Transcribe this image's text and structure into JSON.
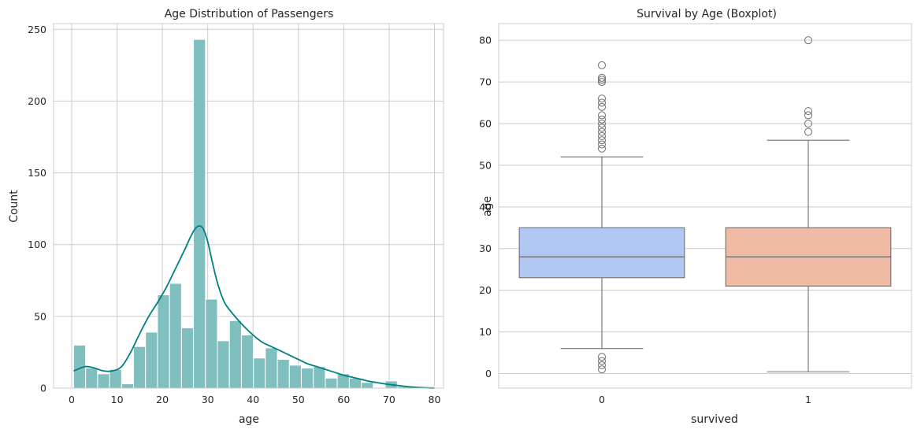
{
  "colors": {
    "hist_fill": "#7fbfbf",
    "kde_line": "#008080",
    "box_0": "#b1c8f5",
    "box_1": "#efbba5",
    "box_line": "#6e6e6e",
    "grid": "#cccccc",
    "frame": "#cccccc"
  },
  "chart_data": [
    {
      "type": "histogram",
      "title": "Age Distribution of Passengers",
      "xlabel": "age",
      "ylabel": "Count",
      "xlim": [
        -4,
        82
      ],
      "ylim": [
        0,
        254
      ],
      "xticks": [
        0,
        10,
        20,
        30,
        40,
        50,
        60,
        70,
        80
      ],
      "yticks": [
        0,
        50,
        100,
        150,
        200,
        250
      ],
      "grid": true,
      "bins": [
        {
          "x0": 0.42,
          "x1": 3.06,
          "count": 30
        },
        {
          "x0": 3.06,
          "x1": 5.71,
          "count": 14
        },
        {
          "x0": 5.71,
          "x1": 8.35,
          "count": 10
        },
        {
          "x0": 8.35,
          "x1": 10.99,
          "count": 13
        },
        {
          "x0": 10.99,
          "x1": 13.64,
          "count": 3
        },
        {
          "x0": 13.64,
          "x1": 16.28,
          "count": 29
        },
        {
          "x0": 16.28,
          "x1": 18.92,
          "count": 39
        },
        {
          "x0": 18.92,
          "x1": 21.57,
          "count": 65
        },
        {
          "x0": 21.57,
          "x1": 24.21,
          "count": 73
        },
        {
          "x0": 24.21,
          "x1": 26.85,
          "count": 42
        },
        {
          "x0": 26.85,
          "x1": 29.5,
          "count": 243
        },
        {
          "x0": 29.5,
          "x1": 32.14,
          "count": 62
        },
        {
          "x0": 32.14,
          "x1": 34.78,
          "count": 33
        },
        {
          "x0": 34.78,
          "x1": 37.43,
          "count": 47
        },
        {
          "x0": 37.43,
          "x1": 40.07,
          "count": 37
        },
        {
          "x0": 40.07,
          "x1": 42.71,
          "count": 21
        },
        {
          "x0": 42.71,
          "x1": 45.36,
          "count": 28
        },
        {
          "x0": 45.36,
          "x1": 48.0,
          "count": 20
        },
        {
          "x0": 48.0,
          "x1": 50.64,
          "count": 16
        },
        {
          "x0": 50.64,
          "x1": 53.29,
          "count": 14
        },
        {
          "x0": 53.29,
          "x1": 55.93,
          "count": 15
        },
        {
          "x0": 55.93,
          "x1": 58.57,
          "count": 7
        },
        {
          "x0": 58.57,
          "x1": 61.22,
          "count": 10
        },
        {
          "x0": 61.22,
          "x1": 63.86,
          "count": 7
        },
        {
          "x0": 63.86,
          "x1": 66.5,
          "count": 4
        },
        {
          "x0": 66.5,
          "x1": 69.15,
          "count": 0
        },
        {
          "x0": 69.15,
          "x1": 71.79,
          "count": 5
        },
        {
          "x0": 71.79,
          "x1": 74.43,
          "count": 1
        },
        {
          "x0": 74.43,
          "x1": 77.08,
          "count": 0
        },
        {
          "x0": 77.08,
          "x1": 80.0,
          "count": 1
        }
      ],
      "kde": {
        "x": [
          0.42,
          3,
          5,
          7,
          9,
          11,
          13,
          15,
          17,
          19,
          21,
          23,
          25,
          26,
          27,
          28,
          29,
          30,
          31,
          32,
          33,
          34,
          36,
          38,
          40,
          42,
          44,
          46,
          48,
          50,
          52,
          54,
          56,
          58,
          60,
          62,
          64,
          66,
          68,
          70,
          72,
          74,
          76,
          78,
          80
        ],
        "y": [
          12,
          15,
          14,
          12,
          12,
          15,
          25,
          38,
          50,
          60,
          71,
          84,
          97,
          104,
          110,
          113,
          111,
          102,
          88,
          75,
          65,
          58,
          50,
          43,
          37,
          32,
          29,
          26,
          23,
          20,
          17,
          15,
          13,
          11,
          9,
          7.5,
          6,
          4.5,
          3.5,
          2.5,
          1.8,
          1.0,
          0.6,
          0.2,
          0
        ]
      }
    },
    {
      "type": "boxplot",
      "title": "Survival by Age (Boxplot)",
      "xlabel": "survived",
      "ylabel": "age",
      "ylim": [
        -3.5,
        84
      ],
      "yticks": [
        0,
        10,
        20,
        30,
        40,
        50,
        60,
        70,
        80
      ],
      "grid": true,
      "boxes": [
        {
          "category": "0",
          "whisker_low": 6,
          "q1": 23,
          "median": 28,
          "q3": 35,
          "whisker_high": 52,
          "outliers": [
            1,
            2,
            3,
            4,
            54,
            55,
            56,
            57,
            58,
            59,
            60,
            61,
            62,
            64,
            65,
            66,
            70,
            70.5,
            71,
            74
          ]
        },
        {
          "category": "1",
          "whisker_low": 0.42,
          "q1": 21,
          "median": 28,
          "q3": 35,
          "whisker_high": 56,
          "outliers": [
            58,
            60,
            62,
            63,
            80
          ]
        }
      ]
    }
  ]
}
